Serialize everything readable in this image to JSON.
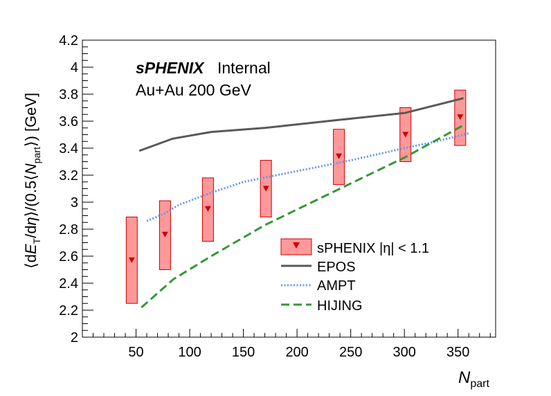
{
  "chart_data": {
    "type": "scatter",
    "ylabel": "⟨dE_T/dη⟩/(0.5⟨N_part⟩) [GeV]",
    "ylabel_parts": {
      "open": "⟨d",
      "E": "E",
      "T": "T",
      "slash_deta": "/d",
      "eta": "η",
      "mid": "⟩/(0.5⟨",
      "N": "N",
      "part": "part",
      "close": "⟩) [GeV]"
    },
    "xlabel": "N_part",
    "xlabel_parts": {
      "N": "N",
      "part": "part"
    },
    "xlim": [
      0,
      385
    ],
    "ylim": [
      2.0,
      4.2
    ],
    "x_ticks": [
      "50",
      "100",
      "150",
      "200",
      "250",
      "300",
      "350"
    ],
    "y_ticks": [
      "2",
      "2.2",
      "2.4",
      "2.6",
      "2.8",
      "3",
      "3.2",
      "3.4",
      "3.6",
      "3.8",
      "4",
      "4.2"
    ],
    "annotation": {
      "brand": "sPHENIX",
      "status": "Internal",
      "system": "Au+Au 200 GeV"
    },
    "series": [
      {
        "name": "sPHENIX |η| < 1.1",
        "kind": "points_with_boxes",
        "color": "#cc0000",
        "box_fill": "#ff9999",
        "points": [
          {
            "x": 46,
            "y": 2.57,
            "low": 2.25,
            "high": 2.89
          },
          {
            "x": 77,
            "y": 2.76,
            "low": 2.5,
            "high": 3.01
          },
          {
            "x": 117,
            "y": 2.95,
            "low": 2.71,
            "high": 3.18
          },
          {
            "x": 171,
            "y": 3.1,
            "low": 2.89,
            "high": 3.31
          },
          {
            "x": 239,
            "y": 3.34,
            "low": 3.13,
            "high": 3.54
          },
          {
            "x": 301,
            "y": 3.5,
            "low": 3.3,
            "high": 3.7
          },
          {
            "x": 352,
            "y": 3.63,
            "low": 3.42,
            "high": 3.83
          }
        ]
      },
      {
        "name": "EPOS",
        "kind": "line",
        "style": "solid",
        "color": "#595959",
        "x": [
          53,
          84,
          120,
          170,
          240,
          300,
          355
        ],
        "y": [
          3.38,
          3.47,
          3.52,
          3.55,
          3.61,
          3.66,
          3.77
        ]
      },
      {
        "name": "AMPT",
        "kind": "line",
        "style": "dotted",
        "color": "#6495ed",
        "x": [
          60,
          75,
          90,
          120,
          150,
          200,
          250,
          300,
          330,
          360
        ],
        "y": [
          2.86,
          2.91,
          2.98,
          3.07,
          3.15,
          3.23,
          3.31,
          3.4,
          3.45,
          3.51
        ]
      },
      {
        "name": "HIJING",
        "kind": "line",
        "style": "dashed",
        "color": "#339933",
        "x": [
          55,
          85,
          120,
          170,
          240,
          300,
          355
        ],
        "y": [
          2.22,
          2.43,
          2.6,
          2.83,
          3.1,
          3.33,
          3.57
        ]
      }
    ],
    "legend_position": "lower-right",
    "grid": false
  }
}
